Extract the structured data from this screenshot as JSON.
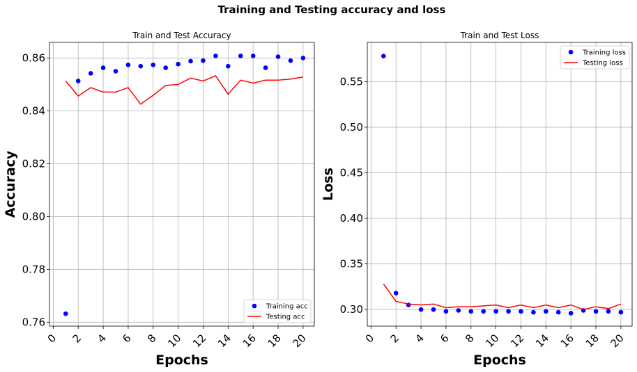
{
  "figure": {
    "suptitle": "Training and Testing accuracy and loss"
  },
  "chart_data": [
    {
      "type": "line",
      "title": "Train and Test Accuracy",
      "xlabel": "Epochs",
      "ylabel": "Accuracy",
      "xlim": [
        -0.3,
        20.9
      ],
      "ylim": [
        0.7585,
        0.8659
      ],
      "xticks": [
        0,
        2,
        4,
        6,
        8,
        10,
        12,
        14,
        16,
        18,
        20
      ],
      "yticks": [
        0.76,
        0.78,
        0.8,
        0.82,
        0.84,
        0.86
      ],
      "ytick_labels": [
        "0.76",
        "0.78",
        "0.80",
        "0.82",
        "0.84",
        "0.86"
      ],
      "grid": true,
      "legend_position": "lower-right",
      "x": [
        1,
        2,
        3,
        4,
        5,
        6,
        7,
        8,
        9,
        10,
        11,
        12,
        13,
        14,
        15,
        16,
        17,
        18,
        19,
        20
      ],
      "series": [
        {
          "name": "Training acc",
          "style": "markers",
          "color": "#0000ff",
          "values": [
            0.7632,
            0.8513,
            0.8542,
            0.8563,
            0.855,
            0.8574,
            0.8569,
            0.8574,
            0.8563,
            0.8577,
            0.8588,
            0.859,
            0.8608,
            0.8569,
            0.8608,
            0.8608,
            0.8563,
            0.8605,
            0.859,
            0.86
          ]
        },
        {
          "name": "Testing acc",
          "style": "line",
          "color": "#ff0000",
          "values": [
            0.8513,
            0.8456,
            0.8488,
            0.8471,
            0.8471,
            0.8488,
            0.8425,
            0.8459,
            0.8496,
            0.85,
            0.8524,
            0.8513,
            0.8533,
            0.8463,
            0.8516,
            0.8505,
            0.8516,
            0.8516,
            0.852,
            0.8528
          ]
        }
      ]
    },
    {
      "type": "line",
      "title": "Train and Test Loss",
      "xlabel": "Epochs",
      "ylabel": "Loss",
      "xlim": [
        -0.3,
        20.9
      ],
      "ylim": [
        0.2818,
        0.593
      ],
      "xticks": [
        0,
        2,
        4,
        6,
        8,
        10,
        12,
        14,
        16,
        18,
        20
      ],
      "yticks": [
        0.3,
        0.35,
        0.4,
        0.45,
        0.5,
        0.55
      ],
      "ytick_labels": [
        "0.30",
        "0.35",
        "0.40",
        "0.45",
        "0.50",
        "0.55"
      ],
      "grid": true,
      "legend_position": "top-right",
      "x": [
        1,
        2,
        3,
        4,
        5,
        6,
        7,
        8,
        9,
        10,
        11,
        12,
        13,
        14,
        15,
        16,
        17,
        18,
        19,
        20
      ],
      "series": [
        {
          "name": "Training loss",
          "style": "markers",
          "color": "#0000ff",
          "values": [
            0.578,
            0.318,
            0.305,
            0.3,
            0.3,
            0.298,
            0.299,
            0.298,
            0.298,
            0.298,
            0.298,
            0.298,
            0.297,
            0.298,
            0.297,
            0.296,
            0.299,
            0.298,
            0.298,
            0.297
          ]
        },
        {
          "name": "Testing loss",
          "style": "line",
          "color": "#ff0000",
          "values": [
            0.328,
            0.309,
            0.306,
            0.305,
            0.306,
            0.302,
            0.303,
            0.303,
            0.304,
            0.305,
            0.302,
            0.305,
            0.302,
            0.305,
            0.302,
            0.305,
            0.3,
            0.303,
            0.301,
            0.306
          ]
        }
      ]
    }
  ]
}
